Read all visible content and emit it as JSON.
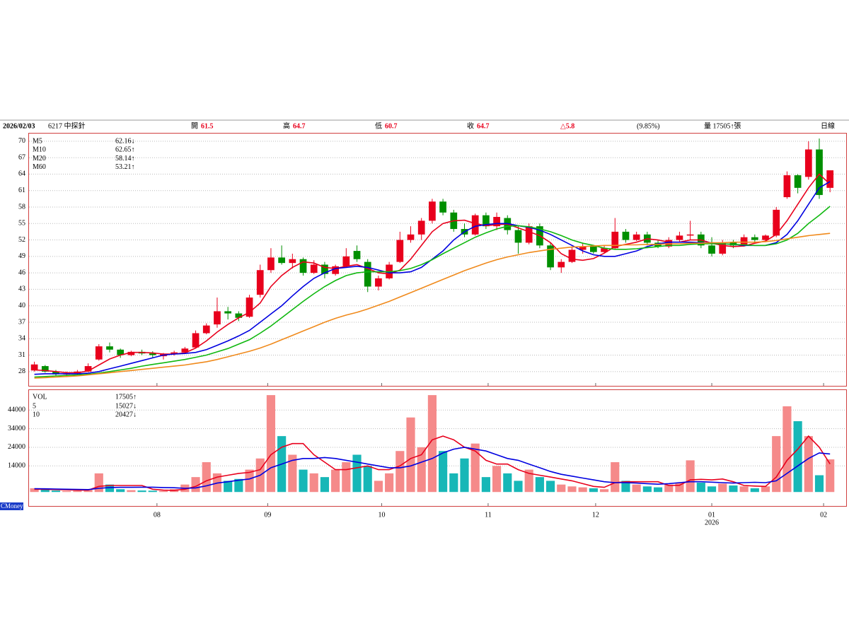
{
  "header": {
    "date": "2026/02/03",
    "symbol": "6217 中探針",
    "open_label": "開",
    "open": 61.5,
    "high_label": "高",
    "high": 64.7,
    "low_label": "低",
    "low": 60.7,
    "close_label": "收",
    "close": 64.7,
    "change": "△5.8",
    "change_pct": "(9.85%)",
    "volume": "量 17505↑張",
    "period": "日線"
  },
  "brand": "CMoney",
  "chart_data": {
    "type": "candlestick",
    "up_color": "#e8001c",
    "down_color": "#008f00",
    "vol_up_color": "#f58a8a",
    "vol_down_color": "#17b7b7",
    "xlim": [
      -0.5,
      75.5
    ],
    "xticks": [
      {
        "value": 11.4,
        "label": "08"
      },
      {
        "value": 21.7,
        "label": "09"
      },
      {
        "value": 32.3,
        "label": "10"
      },
      {
        "value": 42.2,
        "label": "11"
      },
      {
        "value": 52.2,
        "label": "12"
      },
      {
        "value": 63.0,
        "label": "01",
        "sublabel": "2026"
      },
      {
        "value": 73.4,
        "label": "02"
      }
    ],
    "ylim": [
      25.4,
      71.4
    ],
    "yticks": [
      28,
      31,
      34,
      37,
      40,
      43,
      46,
      49,
      52,
      55,
      58,
      61,
      64,
      67,
      70
    ],
    "grid": true,
    "candles": [
      [
        28.2,
        29.8,
        28,
        29.3
      ],
      [
        29,
        29.2,
        27.8,
        28
      ],
      [
        28,
        28.3,
        27.2,
        27.5
      ],
      [
        27.5,
        28,
        27,
        27.6
      ],
      [
        27.6,
        28.3,
        27.4,
        28
      ],
      [
        28,
        29.5,
        27.9,
        29
      ],
      [
        30.2,
        33,
        30,
        32.6
      ],
      [
        32.6,
        33.3,
        31.5,
        32
      ],
      [
        32,
        32.2,
        30.5,
        31
      ],
      [
        31,
        31.8,
        30.8,
        31.6
      ],
      [
        31.6,
        32,
        31,
        31.3
      ],
      [
        31.3,
        31.7,
        30.6,
        31
      ],
      [
        30.8,
        31.4,
        30.2,
        31.2
      ],
      [
        31.2,
        31.8,
        30.9,
        31.5
      ],
      [
        31.5,
        32.5,
        31.2,
        32.2
      ],
      [
        32.4,
        35.5,
        32.2,
        35
      ],
      [
        35,
        36.8,
        34.8,
        36.4
      ],
      [
        36.6,
        41.5,
        36,
        39
      ],
      [
        39,
        39.8,
        37.5,
        38.6
      ],
      [
        38.6,
        39,
        37.2,
        37.8
      ],
      [
        38,
        42,
        37.8,
        41.5
      ],
      [
        42,
        47.5,
        41.5,
        46.5
      ],
      [
        46.5,
        50.5,
        46,
        48.8
      ],
      [
        48.8,
        51,
        47.5,
        47.8
      ],
      [
        47.8,
        49.5,
        46.8,
        48.5
      ],
      [
        48.5,
        48.8,
        45.5,
        46
      ],
      [
        46,
        48.3,
        45.8,
        47.5
      ],
      [
        47.5,
        48,
        45,
        45.8
      ],
      [
        45.8,
        47.5,
        45.5,
        47.2
      ],
      [
        47.2,
        50.5,
        47,
        49
      ],
      [
        50,
        51,
        48,
        48.5
      ],
      [
        48,
        48.5,
        42.5,
        43.5
      ],
      [
        43.5,
        45.5,
        42.8,
        45
      ],
      [
        45,
        48,
        44.8,
        47.5
      ],
      [
        48,
        53.5,
        47.8,
        52
      ],
      [
        52,
        54.5,
        51.5,
        53
      ],
      [
        53,
        56,
        52,
        55.5
      ],
      [
        55.5,
        59.5,
        55,
        59
      ],
      [
        59,
        59.5,
        56.5,
        57
      ],
      [
        57,
        57.5,
        53.5,
        54
      ],
      [
        54,
        55,
        52.5,
        53
      ],
      [
        53,
        56.8,
        52.8,
        56.5
      ],
      [
        56.5,
        57,
        54,
        54.5
      ],
      [
        54.5,
        57,
        53.8,
        56.2
      ],
      [
        56,
        56.5,
        53,
        53.8
      ],
      [
        53.8,
        54.5,
        49.5,
        51.5
      ],
      [
        51.5,
        55,
        51.2,
        54.5
      ],
      [
        54.5,
        55,
        50.5,
        51
      ],
      [
        51,
        51.5,
        46.5,
        47
      ],
      [
        47,
        48.5,
        46,
        48
      ],
      [
        48,
        50.8,
        47.8,
        50.2
      ],
      [
        50.2,
        51.5,
        49.5,
        50.8
      ],
      [
        50.8,
        51,
        49.5,
        49.8
      ],
      [
        49.8,
        51,
        49.5,
        50.5
      ],
      [
        50.5,
        56,
        50.2,
        53.5
      ],
      [
        53.5,
        54,
        51.5,
        52
      ],
      [
        52,
        53.5,
        51.8,
        53
      ],
      [
        53,
        53.5,
        51,
        51.5
      ],
      [
        51.5,
        52,
        50.5,
        50.8
      ],
      [
        50.8,
        52.5,
        50.5,
        52
      ],
      [
        52,
        53.5,
        51.5,
        52.8
      ],
      [
        52.8,
        55.5,
        52,
        53
      ],
      [
        53,
        53.5,
        50.5,
        51
      ],
      [
        51,
        52.5,
        49,
        49.5
      ],
      [
        49.5,
        52,
        49.2,
        51.5
      ],
      [
        51.5,
        52,
        50.5,
        51
      ],
      [
        51,
        53,
        50.8,
        52.5
      ],
      [
        52.5,
        53,
        51.5,
        52
      ],
      [
        52,
        53,
        51.6,
        52.8
      ],
      [
        52.8,
        58,
        52.5,
        57.5
      ],
      [
        59.8,
        64.5,
        59.5,
        63.8
      ],
      [
        63.8,
        64,
        60.5,
        61.5
      ],
      [
        63.5,
        70,
        63,
        68.5
      ],
      [
        68.5,
        70.5,
        59.5,
        60.2
      ],
      [
        61.5,
        64.7,
        60.7,
        64.7
      ]
    ],
    "series": [
      {
        "name": "M5",
        "color": "#e8001c",
        "legend_label": "62.16↓",
        "values": [
          28.3,
          28.2,
          28,
          27.8,
          27.8,
          28.1,
          29.2,
          30.3,
          31,
          31.5,
          31.5,
          31.4,
          31.2,
          31.2,
          31.4,
          32.3,
          33.6,
          35.2,
          36.6,
          37.8,
          38.8,
          40.5,
          43.5,
          45.5,
          47,
          48,
          47.8,
          47,
          46.8,
          47.2,
          47.5,
          46.8,
          46,
          45.8,
          46.5,
          48.5,
          51,
          53.5,
          55,
          55.5,
          55.6,
          55,
          54.6,
          54.8,
          54.9,
          54.2,
          53.5,
          52.8,
          51.5,
          49.5,
          48.5,
          48.3,
          48.6,
          49.6,
          50.8,
          51.2,
          51.6,
          52.2,
          52,
          51.6,
          51.6,
          52,
          52,
          51.4,
          51,
          50.8,
          50.9,
          51.4,
          51.8,
          53,
          55.5,
          58.5,
          61.5,
          64,
          62.16
        ]
      },
      {
        "name": "M10",
        "color": "#0000e0",
        "legend_label": "62.65↑",
        "values": [
          27.5,
          27.6,
          27.6,
          27.6,
          27.6,
          27.7,
          28,
          28.5,
          29,
          29.5,
          30,
          30.5,
          31,
          31.2,
          31.3,
          31.5,
          32,
          32.8,
          33.6,
          34.5,
          35.5,
          37,
          38.5,
          40,
          41.8,
          43.5,
          45,
          46,
          46.8,
          47,
          47.2,
          47,
          46.5,
          46,
          46,
          46.2,
          47,
          48.5,
          50,
          52,
          53.5,
          54.5,
          54.8,
          55,
          55,
          54.6,
          54.3,
          53.8,
          53,
          52,
          51,
          50,
          49.3,
          49,
          49,
          49.5,
          50,
          50.8,
          51.3,
          51.6,
          51.6,
          51.6,
          51.5,
          51.5,
          51.3,
          51.2,
          51,
          51,
          51,
          51.5,
          53,
          55.5,
          58.5,
          61.5,
          62.65
        ]
      },
      {
        "name": "M20",
        "color": "#10b810",
        "legend_label": "58.14↑",
        "values": [
          27,
          27.1,
          27.2,
          27.3,
          27.4,
          27.5,
          27.7,
          28,
          28.3,
          28.6,
          29,
          29.3,
          29.6,
          29.9,
          30.2,
          30.6,
          31,
          31.6,
          32.2,
          33,
          33.8,
          35,
          36.3,
          37.8,
          39.3,
          40.8,
          42.2,
          43.5,
          44.6,
          45.5,
          46,
          46.2,
          46.2,
          46.2,
          46.4,
          46.8,
          47.5,
          48.4,
          49.5,
          50.5,
          51.5,
          52.5,
          53.3,
          54,
          54.5,
          54.6,
          54.4,
          54,
          53.5,
          52.8,
          52,
          51.4,
          51,
          50.5,
          50.3,
          50.3,
          50.4,
          50.6,
          50.8,
          51,
          51,
          51.2,
          51.3,
          51.3,
          51.3,
          51.2,
          51.1,
          51,
          51,
          51.3,
          52,
          53.2,
          55,
          56.5,
          58.14
        ]
      },
      {
        "name": "M60",
        "color": "#f08a1c",
        "legend_label": "53.21↑",
        "values": [
          26.8,
          26.9,
          27,
          27.1,
          27.2,
          27.4,
          27.6,
          27.8,
          28,
          28.2,
          28.4,
          28.6,
          28.8,
          29,
          29.2,
          29.5,
          29.8,
          30.2,
          30.7,
          31.2,
          31.7,
          32.3,
          33,
          33.8,
          34.6,
          35.4,
          36.2,
          37,
          37.7,
          38.3,
          38.8,
          39.4,
          40.1,
          40.8,
          41.6,
          42.4,
          43.2,
          44,
          44.8,
          45.6,
          46.4,
          47.1,
          47.8,
          48.4,
          48.9,
          49.3,
          49.7,
          50,
          50.3,
          50.5,
          50.7,
          50.8,
          50.9,
          51,
          51,
          51.1,
          51.1,
          51.2,
          51.2,
          51.3,
          51.3,
          51.4,
          51.4,
          51.5,
          51.5,
          51.6,
          51.6,
          51.6,
          51.7,
          51.9,
          52.2,
          52.5,
          52.8,
          53,
          53.21
        ]
      }
    ],
    "volume": {
      "name": "VOL",
      "legend_label": "17505↑",
      "ylim": [
        -7500,
        54700
      ],
      "yticks": [
        14000,
        24000,
        34000,
        44000
      ],
      "values": [
        2000,
        1500,
        800,
        600,
        700,
        1500,
        10000,
        4000,
        1500,
        1000,
        800,
        700,
        600,
        1500,
        4000,
        8000,
        16000,
        10000,
        6000,
        7000,
        12000,
        18000,
        52000,
        30000,
        20000,
        12000,
        10000,
        8000,
        12000,
        16000,
        20000,
        14000,
        6000,
        10000,
        22000,
        40000,
        24000,
        52000,
        22000,
        10000,
        18000,
        26000,
        8000,
        14000,
        10000,
        6000,
        12000,
        8000,
        6000,
        4000,
        3000,
        2500,
        2000,
        1500,
        16000,
        6000,
        4000,
        3000,
        2500,
        4000,
        5000,
        17000,
        5000,
        3000,
        4500,
        3500,
        3000,
        2000,
        3000,
        30000,
        46000,
        38000,
        30000,
        9000,
        17505
      ],
      "series": [
        {
          "name": "5",
          "color": "#e8001c",
          "legend_label": "15027↓",
          "values": [
            1500,
            1400,
            1300,
            1200,
            1000,
            1000,
            3000,
            3500,
            3500,
            3500,
            3500,
            1500,
            1000,
            900,
            1500,
            3000,
            6000,
            8000,
            9000,
            10000,
            10500,
            12000,
            20000,
            24000,
            26000,
            26000,
            20000,
            16000,
            12000,
            12000,
            13000,
            14000,
            12000,
            12000,
            14000,
            18000,
            20000,
            28000,
            30000,
            28000,
            24000,
            22000,
            17000,
            15000,
            15000,
            12000,
            10000,
            9000,
            8000,
            7000,
            6000,
            4500,
            3000,
            2500,
            5000,
            5500,
            5500,
            5500,
            5500,
            3500,
            3600,
            6500,
            6800,
            6500,
            7000,
            5500,
            3500,
            3200,
            3000,
            8000,
            17000,
            23000,
            30000,
            24000,
            15027
          ]
        },
        {
          "name": "10",
          "color": "#0000e0",
          "legend_label": "20427↓",
          "values": [
            1800,
            1700,
            1600,
            1500,
            1400,
            1300,
            2000,
            2400,
            2500,
            2500,
            2600,
            2600,
            2400,
            2300,
            2000,
            2200,
            3300,
            4800,
            5500,
            6300,
            7000,
            9000,
            13000,
            15000,
            17000,
            18000,
            18000,
            18500,
            18000,
            17000,
            16000,
            15000,
            14000,
            13000,
            13000,
            14000,
            16000,
            18000,
            21000,
            23000,
            24000,
            23000,
            22000,
            20000,
            18000,
            17000,
            15000,
            13000,
            11000,
            9500,
            8500,
            7500,
            6500,
            5500,
            5000,
            5000,
            4800,
            4500,
            4200,
            4500,
            5000,
            5500,
            5500,
            5300,
            5000,
            4800,
            5000,
            5200,
            5000,
            6000,
            10000,
            14000,
            18000,
            21000,
            20427
          ]
        }
      ]
    }
  }
}
